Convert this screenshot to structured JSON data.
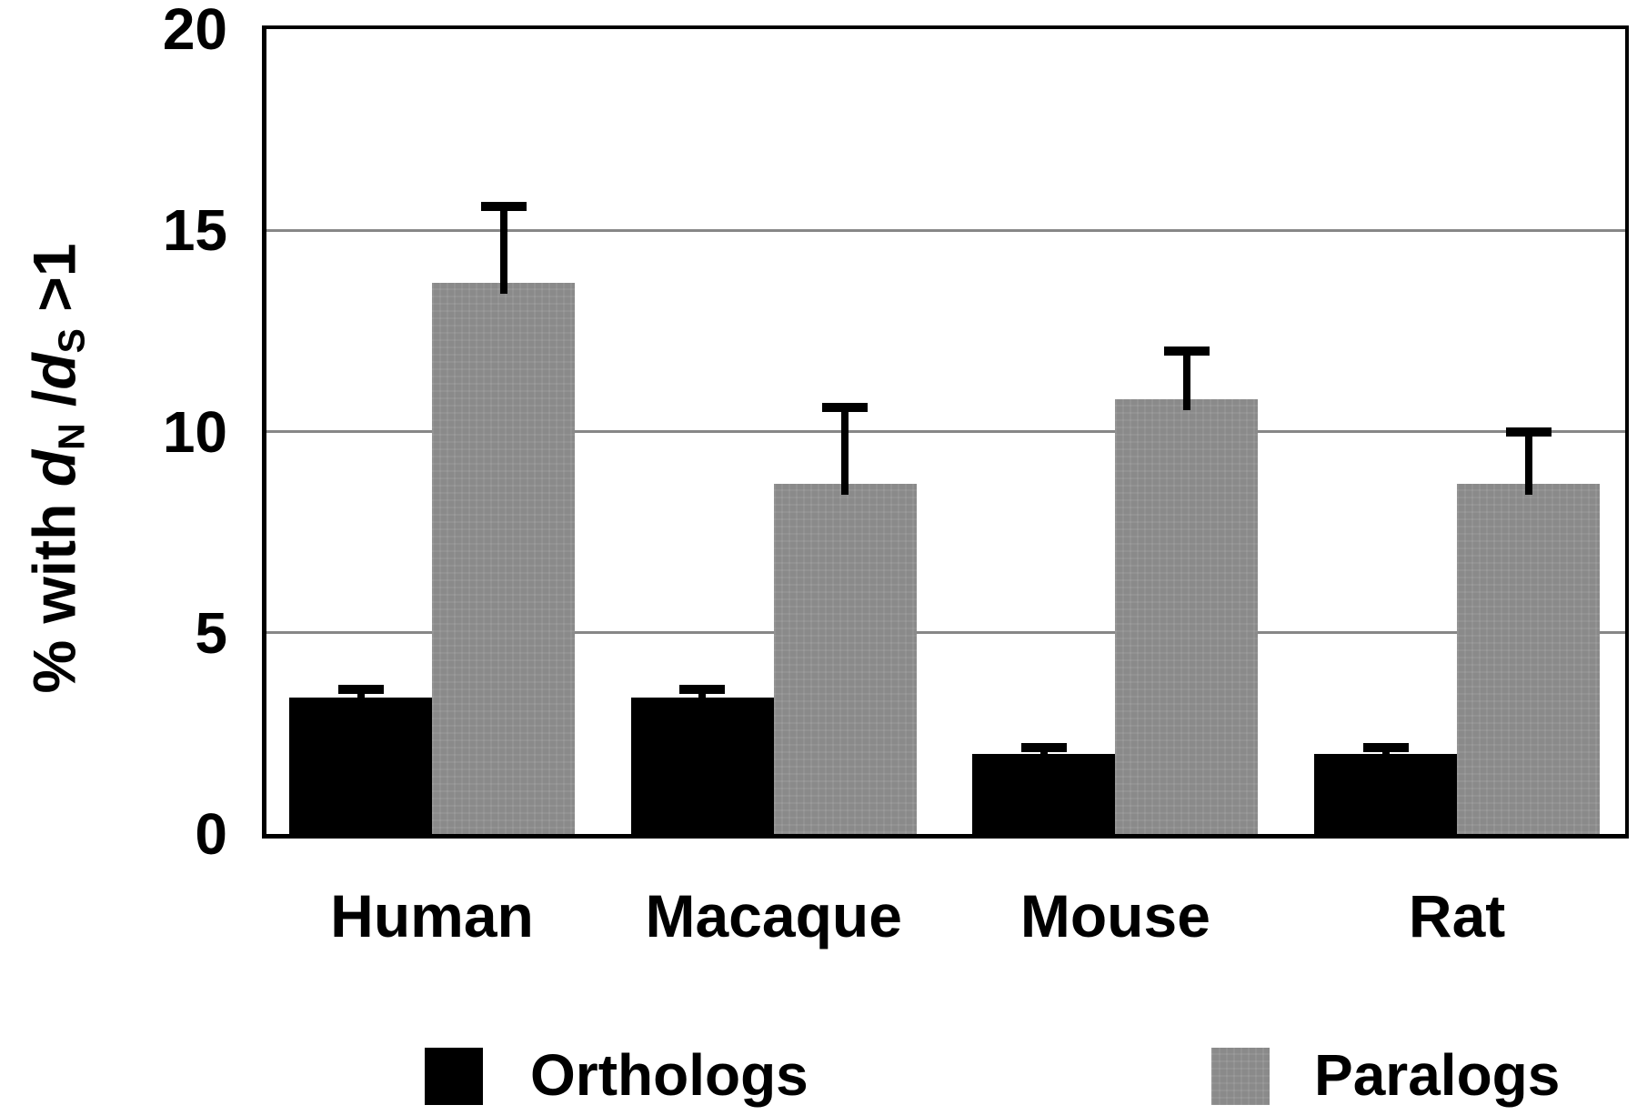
{
  "chart_data": {
    "type": "bar",
    "title": "",
    "categories": [
      "Human",
      "Macaque",
      "Mouse",
      "Rat"
    ],
    "series": [
      {
        "name": "Orthologs",
        "color": "#000000",
        "values": [
          3.4,
          3.4,
          2.0,
          2.0
        ],
        "errors": [
          0.2,
          0.2,
          0.15,
          0.15
        ]
      },
      {
        "name": "Paralogs",
        "color": "#8a8a8a",
        "values": [
          13.7,
          8.7,
          10.8,
          8.7
        ],
        "errors": [
          1.9,
          1.9,
          1.2,
          1.3
        ]
      }
    ],
    "ylabel": "% with dN/dS >1",
    "xlabel": "",
    "ylim": [
      0,
      20
    ],
    "yticks": [
      0,
      5,
      10,
      15,
      20
    ],
    "grid": true,
    "error_bars": "upper",
    "legend_position": "bottom"
  },
  "y_axis": {
    "tick_labels": [
      "20",
      "15",
      "10",
      "5",
      "0"
    ],
    "title_parts": {
      "p1": "% with ",
      "d1": "d",
      "s1": "N",
      "p2": " /",
      "d2": "d",
      "s2": "S",
      "p3": " >1"
    }
  },
  "x_axis": {
    "labels": [
      "Human",
      "Macaque",
      "Mouse",
      "Rat"
    ]
  },
  "legend": {
    "items": [
      {
        "label": "Orthologs",
        "color": "#000000"
      },
      {
        "label": "Paralogs",
        "color": "#8a8a8a"
      }
    ]
  },
  "colors": {
    "bar_black": "#000000",
    "bar_gray": "#8a8a8a",
    "gridline": "#878787",
    "axis_frame": "#000000",
    "background": "#ffffff"
  }
}
